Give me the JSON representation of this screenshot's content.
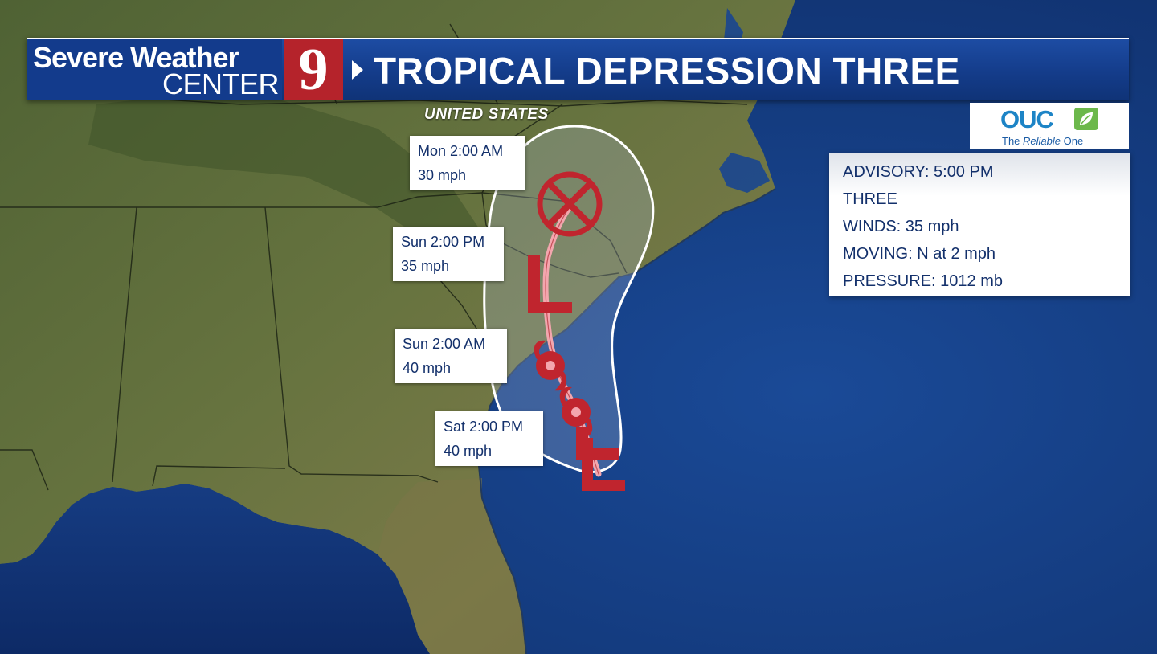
{
  "header": {
    "brand_line1": "Severe Weather",
    "brand_line2": "CENTER",
    "channel_number": "9",
    "title": "TROPICAL DEPRESSION THREE"
  },
  "sponsor": {
    "name": "OUC",
    "tagline_prefix": "The ",
    "tagline_italic": "Reliable",
    "tagline_suffix": " One"
  },
  "advisory": {
    "time": "ADVISORY: 5:00 PM",
    "name": "THREE",
    "winds": "WINDS:  35 mph",
    "moving": "MOVING:  N at 2 mph",
    "pressure": "PRESSURE:  1012 mb"
  },
  "map": {
    "country_label": "UNITED STATES",
    "land_color": "#5f6d3c",
    "ocean_color": "#163f86",
    "track_color": "#f3a6ae",
    "symbol_color": "#c0252e"
  },
  "forecast_points": [
    {
      "time": "Mon 2:00 AM",
      "wind": "30 mph",
      "symbol": "X"
    },
    {
      "time": "Sun 2:00 PM",
      "wind": "35 mph",
      "symbol": "L"
    },
    {
      "time": "Sun 2:00 AM",
      "wind": "40 mph",
      "symbol": "storm"
    },
    {
      "time": "Sat 2:00 PM",
      "wind": "40 mph",
      "symbol": "storm"
    }
  ],
  "current_symbol": "L"
}
